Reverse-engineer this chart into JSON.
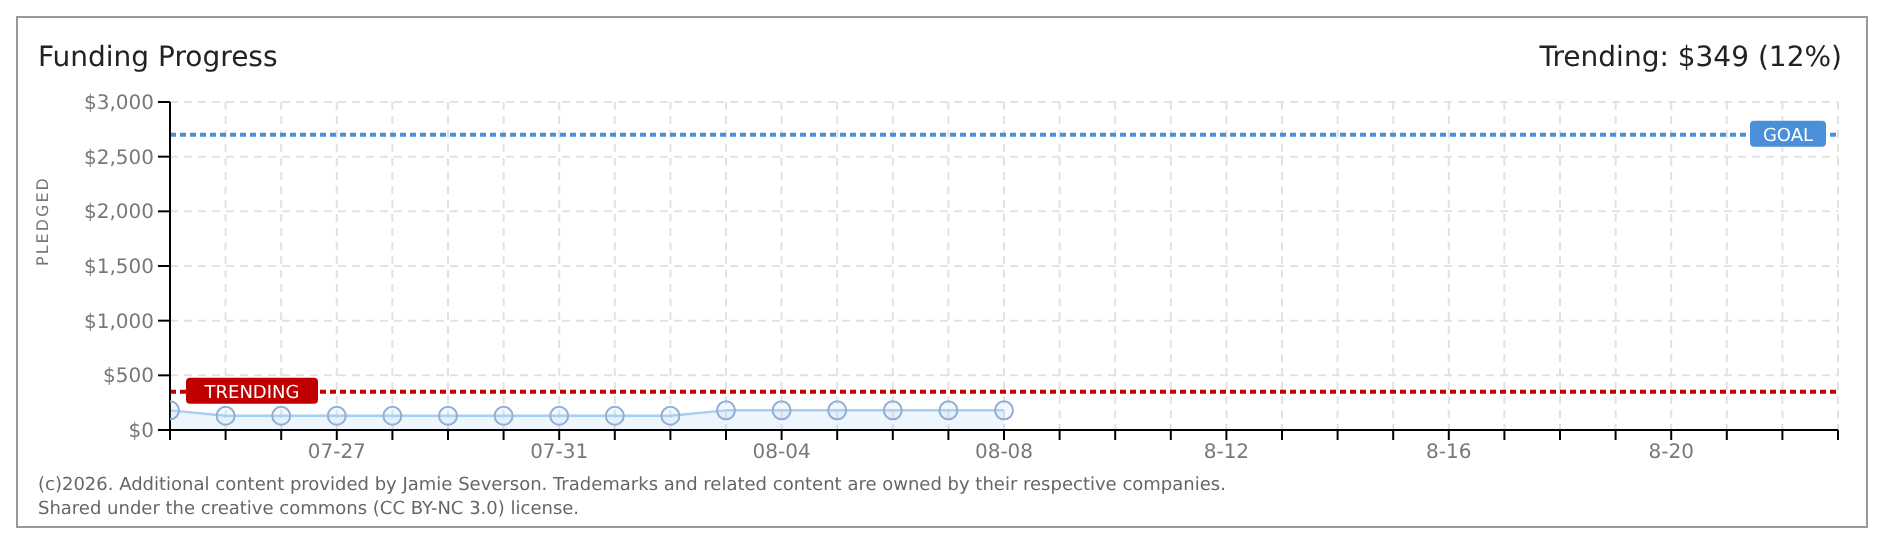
{
  "chart_data": {
    "type": "area",
    "title": "Funding Progress",
    "ylabel": "PLEDGED",
    "annotations": [
      "Trending: $349 (12%)",
      "(c)2026. Additional content provided by Jamie Severson. Trademarks and related content are owned by their respective companies.",
      "Shared under the creative commons (CC BY-NC 3.0) license."
    ],
    "categories": [
      null,
      null,
      null,
      "07-27",
      null,
      null,
      null,
      "07-31",
      null,
      null,
      null,
      "08-04",
      null,
      null,
      null,
      "08-08",
      null,
      null,
      null,
      "8-12",
      null,
      null,
      null,
      "8-16",
      null,
      null,
      null,
      "8-20",
      null,
      null,
      null
    ],
    "series": [
      {
        "color": "#a8cdf0",
        "values": [
          180,
          130,
          130,
          130,
          130,
          130,
          130,
          130,
          130,
          130,
          180,
          180,
          180,
          180,
          180,
          180,
          null,
          null,
          null,
          null,
          null,
          null,
          null,
          null,
          null,
          null,
          null,
          null,
          null,
          null,
          null
        ]
      }
    ],
    "ylim": [
      0,
      3000
    ],
    "yticks": [
      {
        "value": 0,
        "label": "$0"
      },
      {
        "value": 500,
        "label": "$500"
      },
      {
        "value": 1000,
        "label": "$1,000"
      },
      {
        "value": 1500,
        "label": "$1,500"
      },
      {
        "value": 2000,
        "label": "$2,000"
      },
      {
        "value": 2500,
        "label": "$2,500"
      },
      {
        "value": 3000,
        "label": "$3,000"
      }
    ],
    "ref_lines": [
      {
        "axis": "y",
        "value": 2700,
        "label": "GOAL",
        "color": "#4a8fd8",
        "line_style": "dotted"
      },
      {
        "axis": "y",
        "value": 349,
        "label": "TRENDING",
        "color": "#c00000",
        "line_style": "dotted"
      }
    ],
    "grid": true,
    "marker": "circle",
    "line_style": "solid"
  }
}
